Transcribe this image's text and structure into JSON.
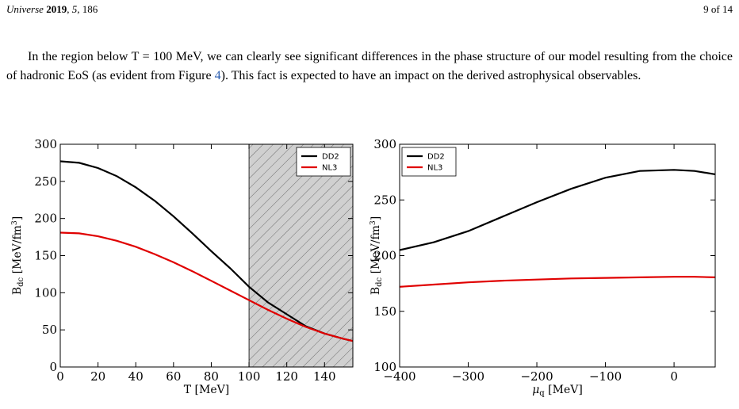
{
  "header": {
    "journal": "Universe",
    "year": "2019",
    "volume": "5",
    "article": "186",
    "page": "9 of 14"
  },
  "paragraph": {
    "before_ref": "In the region below T = 100 MeV, we can clearly see significant differences in the phase structure of our model resulting from the choice of hadronic EoS (as evident from Figure ",
    "ref": "4",
    "after_ref": "). This fact is expected to have an impact on the derived astrophysical observables."
  },
  "colors": {
    "DD2": "#000000",
    "NL3": "#e00000",
    "hatch": "#d0d0d0"
  },
  "chart_data": [
    {
      "type": "line",
      "xlabel": "T [MeV]",
      "ylabel": "B_dc [MeV/fm^3]",
      "xlim": [
        0,
        155
      ],
      "ylim": [
        0,
        300
      ],
      "xticks": [
        0,
        20,
        40,
        60,
        80,
        100,
        120,
        140
      ],
      "yticks": [
        0,
        50,
        100,
        150,
        200,
        250,
        300
      ],
      "legend": "top-right",
      "shaded_region": {
        "x": [
          100,
          155
        ],
        "pattern": "hatched"
      },
      "series": [
        {
          "name": "DD2",
          "x": [
            0,
            10,
            20,
            30,
            40,
            50,
            60,
            70,
            80,
            90,
            100,
            110,
            120,
            130,
            140,
            150,
            155
          ],
          "y": [
            277,
            275,
            268,
            257,
            242,
            224,
            203,
            180,
            156,
            133,
            108,
            87,
            71,
            55,
            45,
            38,
            35
          ]
        },
        {
          "name": "NL3",
          "x": [
            0,
            10,
            20,
            30,
            40,
            50,
            60,
            70,
            80,
            90,
            100,
            110,
            120,
            130,
            140,
            150,
            155
          ],
          "y": [
            181,
            180,
            176,
            170,
            162,
            152,
            141,
            129,
            116,
            103,
            90,
            77,
            65,
            54,
            45,
            38,
            35
          ]
        }
      ]
    },
    {
      "type": "line",
      "xlabel": "μ_q [MeV]",
      "ylabel": "B_dc [MeV/fm^3]",
      "xlim": [
        -400,
        60
      ],
      "ylim": [
        100,
        300
      ],
      "xticks": [
        -400,
        -300,
        -200,
        -100,
        0
      ],
      "yticks": [
        100,
        150,
        200,
        250,
        300
      ],
      "legend": "top-left",
      "series": [
        {
          "name": "DD2",
          "x": [
            -400,
            -350,
            -300,
            -250,
            -200,
            -150,
            -100,
            -50,
            0,
            30,
            60
          ],
          "y": [
            205,
            212,
            222,
            235,
            248,
            260,
            270,
            276,
            277,
            276,
            273
          ]
        },
        {
          "name": "NL3",
          "x": [
            -400,
            -350,
            -300,
            -250,
            -200,
            -150,
            -100,
            -50,
            0,
            30,
            60
          ],
          "y": [
            172,
            174,
            176,
            177.5,
            178.5,
            179.5,
            180,
            180.5,
            181,
            181,
            180.5
          ]
        }
      ]
    }
  ]
}
